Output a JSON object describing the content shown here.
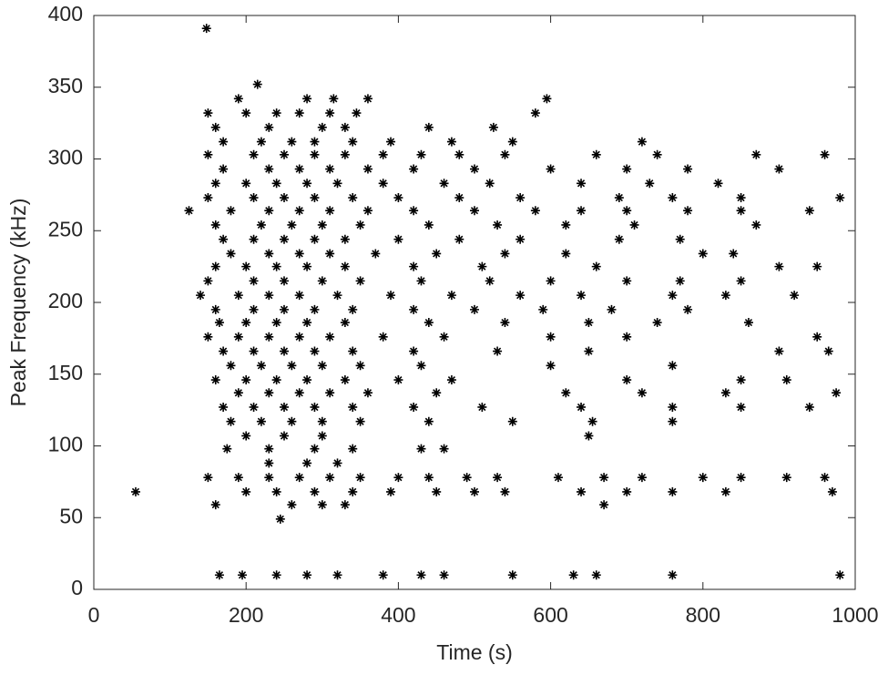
{
  "chart_data": {
    "type": "scatter",
    "x_label": "Time (s)",
    "y_label": "Peak Frequency (kHz)",
    "xlim": [
      0,
      1000
    ],
    "xticks": [
      0,
      200,
      400,
      600,
      800,
      1000
    ],
    "ylim": [
      0,
      400
    ],
    "yticks": [
      0,
      50,
      100,
      150,
      200,
      250,
      300,
      350,
      400
    ],
    "color": "#000000",
    "x": [
      148,
      215,
      190,
      280,
      315,
      360,
      595,
      150,
      200,
      240,
      270,
      310,
      345,
      580,
      160,
      230,
      300,
      330,
      440,
      525,
      170,
      220,
      260,
      290,
      340,
      390,
      470,
      550,
      720,
      150,
      210,
      250,
      290,
      330,
      380,
      430,
      480,
      540,
      660,
      740,
      870,
      960,
      170,
      230,
      270,
      310,
      360,
      420,
      500,
      600,
      700,
      780,
      900,
      160,
      200,
      240,
      280,
      320,
      380,
      460,
      520,
      640,
      730,
      820,
      150,
      210,
      250,
      290,
      340,
      400,
      480,
      560,
      690,
      760,
      850,
      980,
      125,
      180,
      230,
      270,
      310,
      360,
      420,
      500,
      580,
      640,
      700,
      780,
      850,
      940,
      160,
      220,
      260,
      300,
      350,
      440,
      530,
      620,
      710,
      870,
      170,
      210,
      250,
      290,
      330,
      400,
      480,
      560,
      690,
      770,
      180,
      230,
      270,
      310,
      370,
      450,
      540,
      620,
      800,
      840,
      160,
      200,
      240,
      280,
      330,
      420,
      510,
      660,
      900,
      950,
      150,
      210,
      250,
      300,
      350,
      430,
      520,
      600,
      700,
      770,
      850,
      140,
      190,
      230,
      270,
      320,
      390,
      470,
      560,
      640,
      760,
      830,
      920,
      160,
      210,
      250,
      290,
      340,
      420,
      500,
      590,
      680,
      780,
      165,
      200,
      240,
      280,
      330,
      440,
      540,
      650,
      740,
      860,
      150,
      190,
      230,
      270,
      310,
      380,
      460,
      600,
      700,
      950,
      170,
      210,
      250,
      290,
      340,
      420,
      530,
      650,
      900,
      965,
      180,
      220,
      260,
      300,
      350,
      430,
      600,
      760,
      160,
      200,
      240,
      280,
      330,
      400,
      470,
      700,
      850,
      910,
      190,
      230,
      270,
      310,
      360,
      450,
      620,
      720,
      830,
      975,
      170,
      210,
      250,
      290,
      340,
      420,
      510,
      640,
      760,
      850,
      940,
      180,
      220,
      260,
      300,
      350,
      440,
      550,
      655,
      760,
      200,
      250,
      300,
      650,
      175,
      230,
      290,
      340,
      430,
      460,
      230,
      280,
      320,
      150,
      190,
      230,
      270,
      310,
      350,
      400,
      440,
      490,
      530,
      610,
      670,
      720,
      800,
      850,
      910,
      960,
      55,
      200,
      240,
      290,
      340,
      390,
      450,
      500,
      540,
      640,
      700,
      760,
      830,
      970,
      160,
      260,
      300,
      330,
      670,
      245,
      165,
      195,
      240,
      280,
      320,
      380,
      430,
      460,
      550,
      630,
      660,
      760,
      980
    ],
    "values": [
      391,
      352,
      342,
      342,
      342,
      342,
      342,
      332,
      332,
      332,
      332,
      332,
      332,
      332,
      322,
      322,
      322,
      322,
      322,
      322,
      312,
      312,
      312,
      312,
      312,
      312,
      312,
      312,
      312,
      303,
      303,
      303,
      303,
      303,
      303,
      303,
      303,
      303,
      303,
      303,
      303,
      303,
      293,
      293,
      293,
      293,
      293,
      293,
      293,
      293,
      293,
      293,
      293,
      283,
      283,
      283,
      283,
      283,
      283,
      283,
      283,
      283,
      283,
      283,
      273,
      273,
      273,
      273,
      273,
      273,
      273,
      273,
      273,
      273,
      273,
      273,
      264,
      264,
      264,
      264,
      264,
      264,
      264,
      264,
      264,
      264,
      264,
      264,
      264,
      264,
      254,
      254,
      254,
      254,
      254,
      254,
      254,
      254,
      254,
      254,
      244,
      244,
      244,
      244,
      244,
      244,
      244,
      244,
      244,
      244,
      234,
      234,
      234,
      234,
      234,
      234,
      234,
      234,
      234,
      234,
      225,
      225,
      225,
      225,
      225,
      225,
      225,
      225,
      225,
      225,
      215,
      215,
      215,
      215,
      215,
      215,
      215,
      215,
      215,
      215,
      215,
      205,
      205,
      205,
      205,
      205,
      205,
      205,
      205,
      205,
      205,
      205,
      205,
      195,
      195,
      195,
      195,
      195,
      195,
      195,
      195,
      195,
      195,
      186,
      186,
      186,
      186,
      186,
      186,
      186,
      186,
      186,
      186,
      176,
      176,
      176,
      176,
      176,
      176,
      176,
      176,
      176,
      176,
      166,
      166,
      166,
      166,
      166,
      166,
      166,
      166,
      166,
      166,
      156,
      156,
      156,
      156,
      156,
      156,
      156,
      156,
      146,
      146,
      146,
      146,
      146,
      146,
      146,
      146,
      146,
      146,
      137,
      137,
      137,
      137,
      137,
      137,
      137,
      137,
      137,
      137,
      127,
      127,
      127,
      127,
      127,
      127,
      127,
      127,
      127,
      127,
      127,
      117,
      117,
      117,
      117,
      117,
      117,
      117,
      117,
      117,
      107,
      107,
      107,
      107,
      98,
      98,
      98,
      98,
      98,
      98,
      88,
      88,
      88,
      78,
      78,
      78,
      78,
      78,
      78,
      78,
      78,
      78,
      78,
      78,
      78,
      78,
      78,
      78,
      78,
      78,
      68,
      68,
      68,
      68,
      68,
      68,
      68,
      68,
      68,
      68,
      68,
      68,
      68,
      68,
      59,
      59,
      59,
      59,
      59,
      49,
      10,
      10,
      10,
      10,
      10,
      10,
      10,
      10,
      10,
      10,
      10,
      10,
      10
    ]
  }
}
